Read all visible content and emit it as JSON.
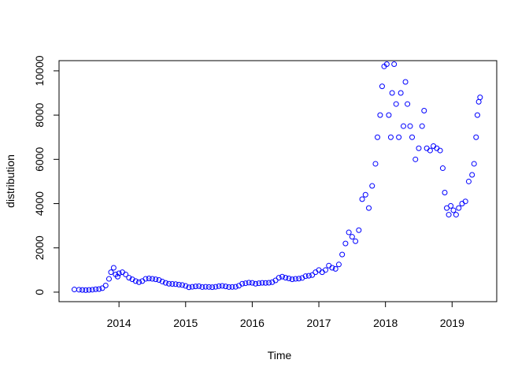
{
  "chart_data": {
    "type": "scatter",
    "x_label": "Time",
    "y_label": "distribution",
    "series": [
      {
        "color": "#0000ff",
        "x": [
          2013.33,
          2013.4,
          2013.45,
          2013.5,
          2013.55,
          2013.6,
          2013.65,
          2013.7,
          2013.75,
          2013.8,
          2013.85,
          2013.88,
          2013.92,
          2013.95,
          2013.98,
          2014.0,
          2014.05,
          2014.1,
          2014.15,
          2014.2,
          2014.25,
          2014.3,
          2014.35,
          2014.4,
          2014.45,
          2014.5,
          2014.55,
          2014.6,
          2014.65,
          2014.7,
          2014.75,
          2014.8,
          2014.85,
          2014.9,
          2014.95,
          2015.0,
          2015.05,
          2015.1,
          2015.15,
          2015.2,
          2015.25,
          2015.3,
          2015.35,
          2015.4,
          2015.45,
          2015.5,
          2015.55,
          2015.6,
          2015.65,
          2015.7,
          2015.75,
          2015.8,
          2015.85,
          2015.9,
          2015.95,
          2016.0,
          2016.05,
          2016.1,
          2016.15,
          2016.2,
          2016.25,
          2016.3,
          2016.35,
          2016.4,
          2016.45,
          2016.5,
          2016.55,
          2016.6,
          2016.65,
          2016.7,
          2016.75,
          2016.8,
          2016.85,
          2016.9,
          2016.95,
          2017.0,
          2017.05,
          2017.1,
          2017.15,
          2017.2,
          2017.25,
          2017.3,
          2017.35,
          2017.4,
          2017.45,
          2017.5,
          2017.55,
          2017.6,
          2017.65,
          2017.7,
          2017.75,
          2017.8,
          2017.85,
          2017.88,
          2017.92,
          2017.95,
          2017.98,
          2018.02,
          2018.05,
          2018.08,
          2018.1,
          2018.13,
          2018.16,
          2018.2,
          2018.23,
          2018.27,
          2018.3,
          2018.33,
          2018.37,
          2018.4,
          2018.45,
          2018.5,
          2018.55,
          2018.58,
          2018.62,
          2018.67,
          2018.72,
          2018.77,
          2018.82,
          2018.86,
          2018.89,
          2018.92,
          2018.95,
          2018.98,
          2019.02,
          2019.06,
          2019.1,
          2019.15,
          2019.2,
          2019.25,
          2019.3,
          2019.33,
          2019.36,
          2019.38,
          2019.4,
          2019.42
        ],
        "values": [
          120,
          110,
          100,
          90,
          100,
          110,
          130,
          140,
          180,
          300,
          600,
          900,
          1100,
          800,
          700,
          850,
          900,
          800,
          650,
          580,
          500,
          450,
          500,
          600,
          620,
          600,
          580,
          550,
          480,
          420,
          380,
          370,
          360,
          340,
          320,
          280,
          220,
          240,
          260,
          270,
          230,
          240,
          235,
          225,
          240,
          270,
          280,
          260,
          230,
          235,
          240,
          290,
          380,
          400,
          430,
          420,
          380,
          400,
          420,
          415,
          425,
          450,
          530,
          650,
          700,
          650,
          620,
          580,
          600,
          610,
          640,
          720,
          740,
          770,
          900,
          1000,
          900,
          1000,
          1200,
          1100,
          1050,
          1250,
          1700,
          2200,
          2700,
          2500,
          2300,
          2800,
          4200,
          4400,
          3800,
          4800,
          5800,
          7000,
          8000,
          9300,
          10200,
          10300,
          8000,
          7000,
          9000,
          10300,
          8500,
          7000,
          9000,
          7500,
          9500,
          8500,
          7500,
          7000,
          6000,
          6500,
          7500,
          8200,
          6500,
          6400,
          6600,
          6500,
          6400,
          5600,
          4500,
          3800,
          3500,
          3900,
          3700,
          3500,
          3800,
          4000,
          4100,
          5000,
          5300,
          5800,
          7000,
          8000,
          8600,
          8800
        ]
      }
    ],
    "xlim": [
      2013.1,
      2019.67
    ],
    "ylim": [
      -430,
      10460
    ],
    "xticks": [
      2014,
      2015,
      2016,
      2017,
      2018,
      2019
    ],
    "yticks": [
      0,
      2000,
      4000,
      6000,
      8000,
      10000
    ]
  }
}
